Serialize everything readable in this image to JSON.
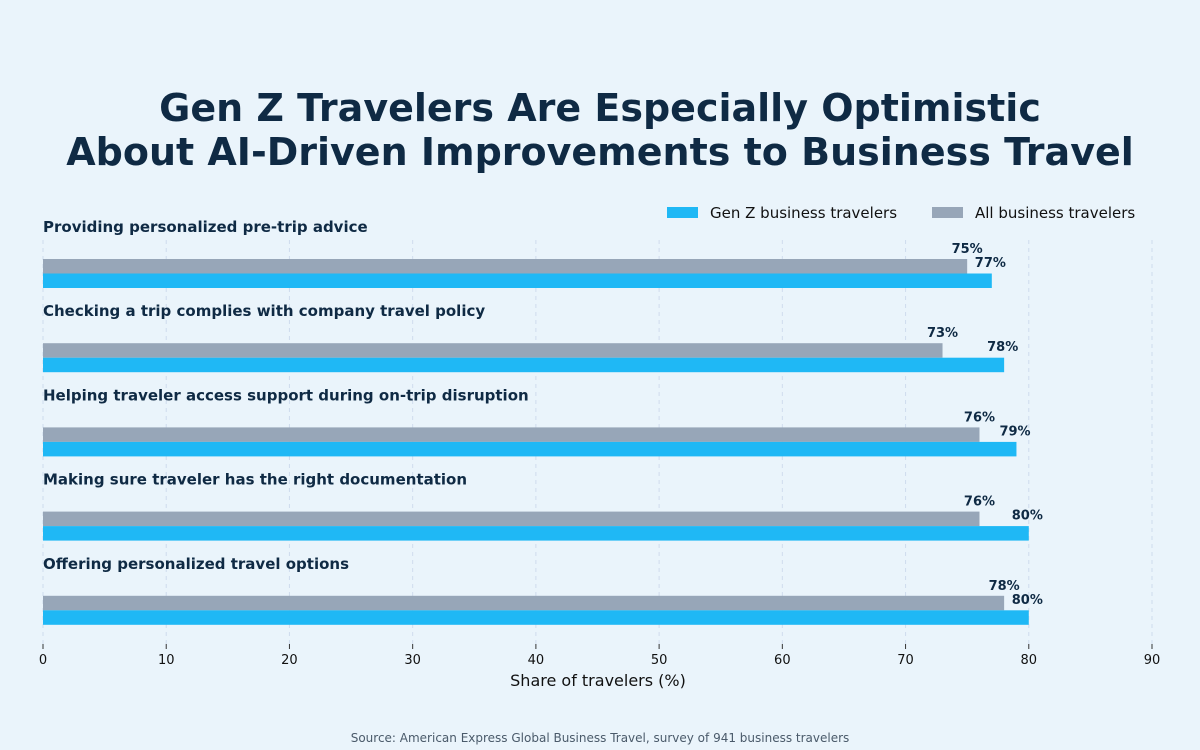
{
  "chart_data": {
    "type": "bar",
    "orientation": "horizontal",
    "title_lines": [
      "Gen Z Travelers Are Especially Optimistic",
      "About AI-Driven Improvements to Business Travel"
    ],
    "categories": [
      "Providing personalized pre-trip advice",
      "Checking a trip complies with company travel policy",
      "Helping traveler access support during on-trip disruption",
      "Making sure traveler has the right documentation",
      "Offering personalized travel options"
    ],
    "series": [
      {
        "name": "Gen Z business travelers",
        "color": "#1fb8f5",
        "values": [
          77,
          78,
          79,
          80,
          80
        ],
        "labels": [
          "77%",
          "78%",
          "79%",
          "80%",
          "80%"
        ]
      },
      {
        "name": "All business travelers",
        "color": "#97a6b8",
        "values": [
          75,
          73,
          76,
          76,
          78
        ],
        "labels": [
          "75%",
          "73%",
          "76%",
          "76%",
          "78%"
        ]
      }
    ],
    "xlabel": "Share of travelers (%)",
    "xlim": [
      0,
      90
    ],
    "xticks": [
      "0",
      "10",
      "20",
      "30",
      "40",
      "50",
      "60",
      "70",
      "80",
      "90"
    ],
    "grid": "vertical dashed",
    "legend_position": "top-right"
  },
  "source": "Source: American Express Global Business Travel, survey of 941 business travelers"
}
